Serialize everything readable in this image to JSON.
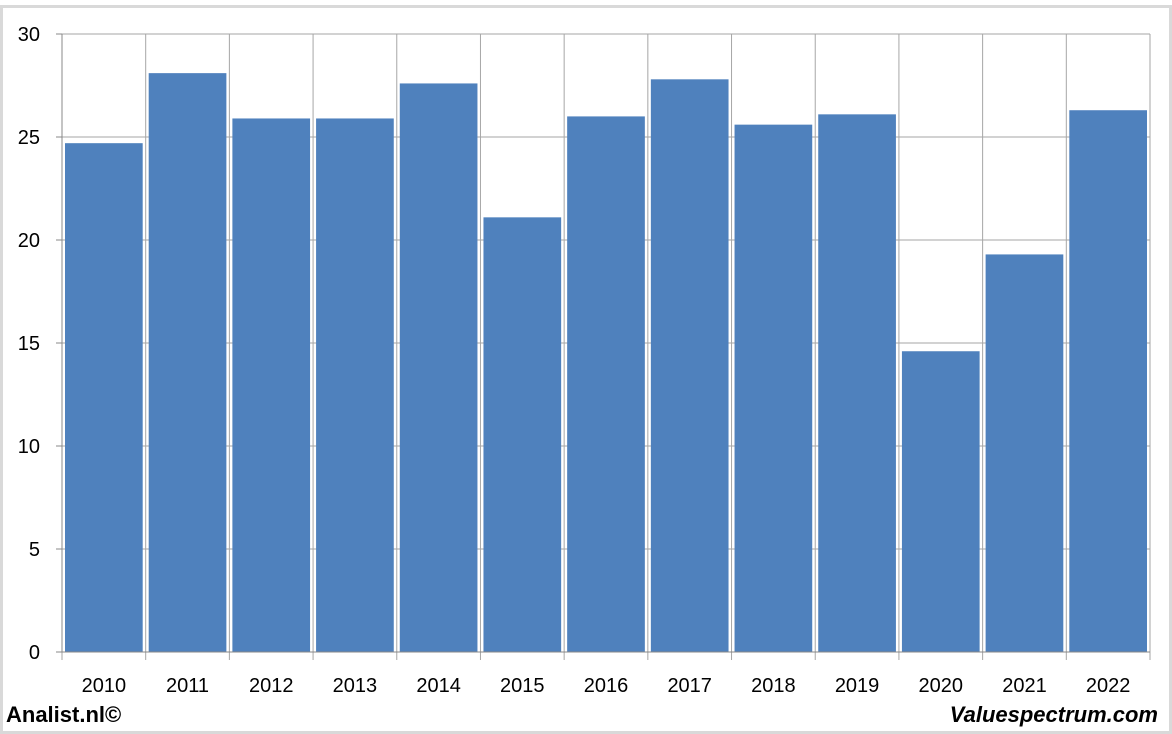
{
  "chart_data": {
    "type": "bar",
    "categories": [
      "2010",
      "2011",
      "2012",
      "2013",
      "2014",
      "2015",
      "2016",
      "2017",
      "2018",
      "2019",
      "2020",
      "2021",
      "2022"
    ],
    "values": [
      24.7,
      28.1,
      25.9,
      25.9,
      27.6,
      21.1,
      26.0,
      27.8,
      25.6,
      26.1,
      14.6,
      19.3,
      26.3
    ],
    "title": "",
    "xlabel": "",
    "ylabel": "",
    "ylim": [
      0,
      30
    ],
    "yticks": [
      "0",
      "5",
      "10",
      "15",
      "20",
      "25",
      "30"
    ],
    "grid": true,
    "bar_color": "#4f81bd",
    "grid_color": "#a6a6a6",
    "frame_color": "#d9d9d9"
  },
  "footer": {
    "left": "Analist.nl©",
    "right": "Valuespectrum.com"
  }
}
